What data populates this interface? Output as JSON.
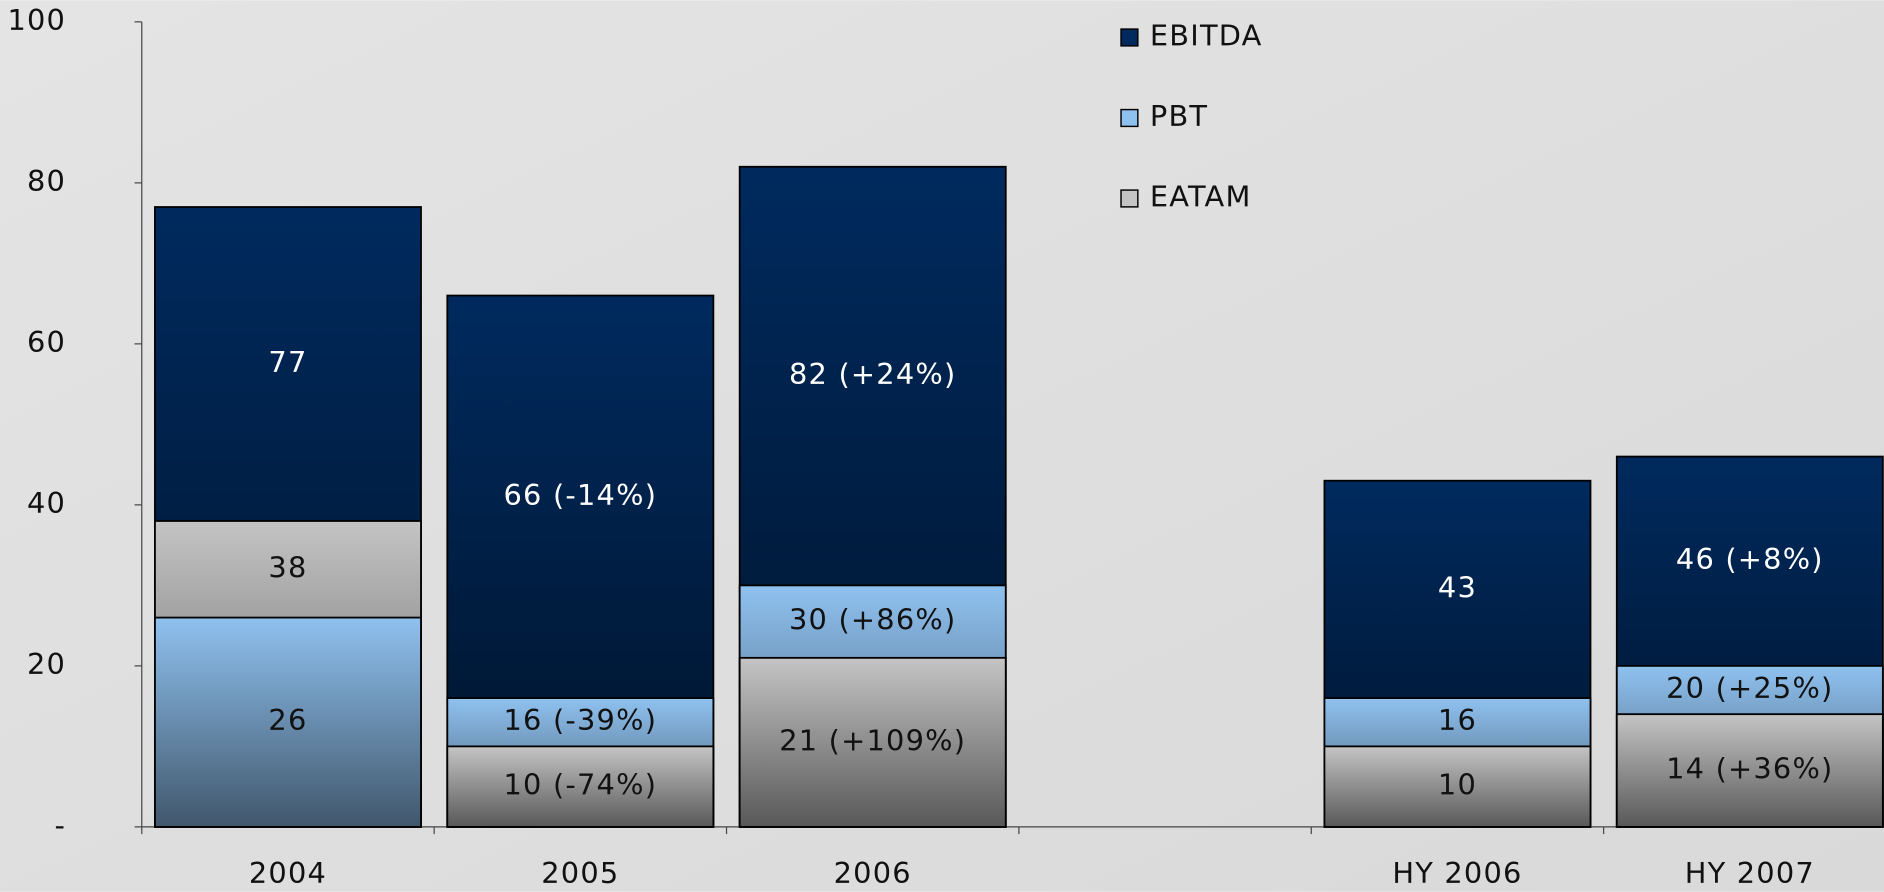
{
  "chart_data": {
    "type": "overlapped_bar",
    "categories": [
      "2004",
      "2005",
      "2006",
      null,
      "HY 2006",
      "HY 2007"
    ],
    "series": [
      {
        "name": "EBITDA",
        "color": "#002a5e",
        "label_color": "#ffffff",
        "values": [
          77,
          66,
          82,
          null,
          43,
          46
        ],
        "value_labels": [
          "77",
          "66 (-14%)",
          "82 (+24%)",
          null,
          "43",
          "46 (+8%)"
        ]
      },
      {
        "name": "PBT",
        "color": "#8fc1ef",
        "label_color": "#111111",
        "values": [
          26,
          16,
          30,
          null,
          16,
          20
        ],
        "value_labels": [
          "26",
          "16 (-39%)",
          "30 (+86%)",
          null,
          "16",
          "20 (+25%)"
        ]
      },
      {
        "name": "EATAM",
        "color": "#c4c4c4",
        "label_color": "#111111",
        "values": [
          38,
          10,
          21,
          null,
          10,
          14
        ],
        "value_labels": [
          "38",
          "10 (-74%)",
          "21 (+109%)",
          null,
          "10",
          "14 (+36%)"
        ]
      }
    ],
    "ylim": [
      0,
      100
    ],
    "yticks": [
      {
        "value": 0,
        "label": "-"
      },
      20,
      40,
      60,
      80,
      100
    ],
    "legend": "top-center"
  }
}
